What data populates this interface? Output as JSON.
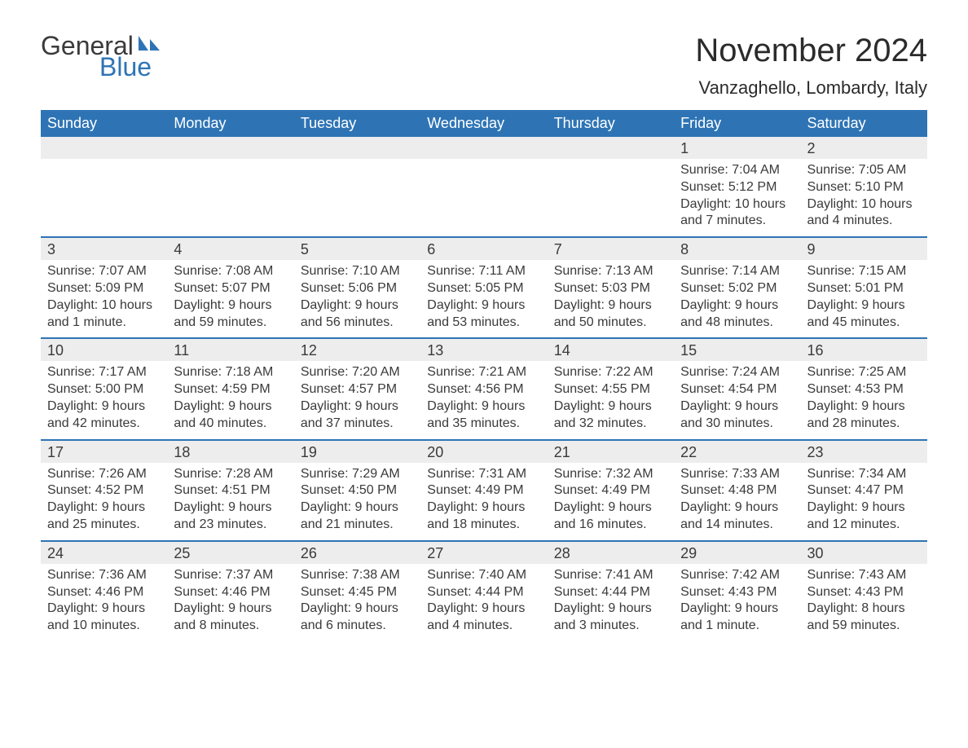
{
  "brand": {
    "general": "General",
    "blue": "Blue",
    "sail_color": "#2e74b5",
    "text_dark": "#3a3a3a"
  },
  "title": "November 2024",
  "location": "Vanzaghello, Lombardy, Italy",
  "colors": {
    "header_bg": "#2e74b5",
    "header_text": "#ffffff",
    "daynum_bg": "#ededed",
    "body_text": "#3a3a3a",
    "separator": "#2e74b5",
    "page_bg": "#ffffff"
  },
  "fonts": {
    "title_size": 40,
    "location_size": 22,
    "header_size": 18,
    "daynum_size": 18,
    "body_size": 16
  },
  "weekdays": [
    "Sunday",
    "Monday",
    "Tuesday",
    "Wednesday",
    "Thursday",
    "Friday",
    "Saturday"
  ],
  "weeks": [
    [
      null,
      null,
      null,
      null,
      null,
      {
        "n": "1",
        "sunrise": "Sunrise: 7:04 AM",
        "sunset": "Sunset: 5:12 PM",
        "daylight": "Daylight: 10 hours and 7 minutes."
      },
      {
        "n": "2",
        "sunrise": "Sunrise: 7:05 AM",
        "sunset": "Sunset: 5:10 PM",
        "daylight": "Daylight: 10 hours and 4 minutes."
      }
    ],
    [
      {
        "n": "3",
        "sunrise": "Sunrise: 7:07 AM",
        "sunset": "Sunset: 5:09 PM",
        "daylight": "Daylight: 10 hours and 1 minute."
      },
      {
        "n": "4",
        "sunrise": "Sunrise: 7:08 AM",
        "sunset": "Sunset: 5:07 PM",
        "daylight": "Daylight: 9 hours and 59 minutes."
      },
      {
        "n": "5",
        "sunrise": "Sunrise: 7:10 AM",
        "sunset": "Sunset: 5:06 PM",
        "daylight": "Daylight: 9 hours and 56 minutes."
      },
      {
        "n": "6",
        "sunrise": "Sunrise: 7:11 AM",
        "sunset": "Sunset: 5:05 PM",
        "daylight": "Daylight: 9 hours and 53 minutes."
      },
      {
        "n": "7",
        "sunrise": "Sunrise: 7:13 AM",
        "sunset": "Sunset: 5:03 PM",
        "daylight": "Daylight: 9 hours and 50 minutes."
      },
      {
        "n": "8",
        "sunrise": "Sunrise: 7:14 AM",
        "sunset": "Sunset: 5:02 PM",
        "daylight": "Daylight: 9 hours and 48 minutes."
      },
      {
        "n": "9",
        "sunrise": "Sunrise: 7:15 AM",
        "sunset": "Sunset: 5:01 PM",
        "daylight": "Daylight: 9 hours and 45 minutes."
      }
    ],
    [
      {
        "n": "10",
        "sunrise": "Sunrise: 7:17 AM",
        "sunset": "Sunset: 5:00 PM",
        "daylight": "Daylight: 9 hours and 42 minutes."
      },
      {
        "n": "11",
        "sunrise": "Sunrise: 7:18 AM",
        "sunset": "Sunset: 4:59 PM",
        "daylight": "Daylight: 9 hours and 40 minutes."
      },
      {
        "n": "12",
        "sunrise": "Sunrise: 7:20 AM",
        "sunset": "Sunset: 4:57 PM",
        "daylight": "Daylight: 9 hours and 37 minutes."
      },
      {
        "n": "13",
        "sunrise": "Sunrise: 7:21 AM",
        "sunset": "Sunset: 4:56 PM",
        "daylight": "Daylight: 9 hours and 35 minutes."
      },
      {
        "n": "14",
        "sunrise": "Sunrise: 7:22 AM",
        "sunset": "Sunset: 4:55 PM",
        "daylight": "Daylight: 9 hours and 32 minutes."
      },
      {
        "n": "15",
        "sunrise": "Sunrise: 7:24 AM",
        "sunset": "Sunset: 4:54 PM",
        "daylight": "Daylight: 9 hours and 30 minutes."
      },
      {
        "n": "16",
        "sunrise": "Sunrise: 7:25 AM",
        "sunset": "Sunset: 4:53 PM",
        "daylight": "Daylight: 9 hours and 28 minutes."
      }
    ],
    [
      {
        "n": "17",
        "sunrise": "Sunrise: 7:26 AM",
        "sunset": "Sunset: 4:52 PM",
        "daylight": "Daylight: 9 hours and 25 minutes."
      },
      {
        "n": "18",
        "sunrise": "Sunrise: 7:28 AM",
        "sunset": "Sunset: 4:51 PM",
        "daylight": "Daylight: 9 hours and 23 minutes."
      },
      {
        "n": "19",
        "sunrise": "Sunrise: 7:29 AM",
        "sunset": "Sunset: 4:50 PM",
        "daylight": "Daylight: 9 hours and 21 minutes."
      },
      {
        "n": "20",
        "sunrise": "Sunrise: 7:31 AM",
        "sunset": "Sunset: 4:49 PM",
        "daylight": "Daylight: 9 hours and 18 minutes."
      },
      {
        "n": "21",
        "sunrise": "Sunrise: 7:32 AM",
        "sunset": "Sunset: 4:49 PM",
        "daylight": "Daylight: 9 hours and 16 minutes."
      },
      {
        "n": "22",
        "sunrise": "Sunrise: 7:33 AM",
        "sunset": "Sunset: 4:48 PM",
        "daylight": "Daylight: 9 hours and 14 minutes."
      },
      {
        "n": "23",
        "sunrise": "Sunrise: 7:34 AM",
        "sunset": "Sunset: 4:47 PM",
        "daylight": "Daylight: 9 hours and 12 minutes."
      }
    ],
    [
      {
        "n": "24",
        "sunrise": "Sunrise: 7:36 AM",
        "sunset": "Sunset: 4:46 PM",
        "daylight": "Daylight: 9 hours and 10 minutes."
      },
      {
        "n": "25",
        "sunrise": "Sunrise: 7:37 AM",
        "sunset": "Sunset: 4:46 PM",
        "daylight": "Daylight: 9 hours and 8 minutes."
      },
      {
        "n": "26",
        "sunrise": "Sunrise: 7:38 AM",
        "sunset": "Sunset: 4:45 PM",
        "daylight": "Daylight: 9 hours and 6 minutes."
      },
      {
        "n": "27",
        "sunrise": "Sunrise: 7:40 AM",
        "sunset": "Sunset: 4:44 PM",
        "daylight": "Daylight: 9 hours and 4 minutes."
      },
      {
        "n": "28",
        "sunrise": "Sunrise: 7:41 AM",
        "sunset": "Sunset: 4:44 PM",
        "daylight": "Daylight: 9 hours and 3 minutes."
      },
      {
        "n": "29",
        "sunrise": "Sunrise: 7:42 AM",
        "sunset": "Sunset: 4:43 PM",
        "daylight": "Daylight: 9 hours and 1 minute."
      },
      {
        "n": "30",
        "sunrise": "Sunrise: 7:43 AM",
        "sunset": "Sunset: 4:43 PM",
        "daylight": "Daylight: 8 hours and 59 minutes."
      }
    ]
  ]
}
